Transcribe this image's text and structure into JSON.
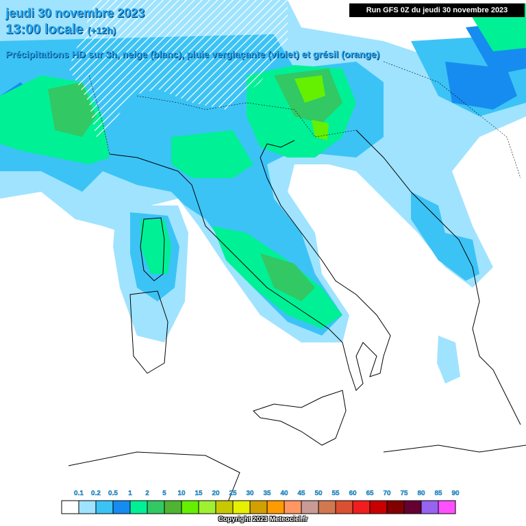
{
  "header": {
    "date": "jeudi 30 novembre 2023",
    "time": "13:00 locale",
    "offset": "(+12h)",
    "subtitle": "Précipitations HD sur 3h, neige (blanc), pluie verglaçante (violet) et grésil (orange)",
    "run": "Run GFS 0Z du jeudi 30 novembre 2023"
  },
  "legend": {
    "labels": [
      "0.1",
      "0.2",
      "0.5",
      "1",
      "2",
      "5",
      "10",
      "15",
      "20",
      "25",
      "30",
      "35",
      "40",
      "45",
      "50",
      "55",
      "60",
      "65",
      "70",
      "75",
      "80",
      "85",
      "90"
    ],
    "colors": [
      "#ffffff",
      "#9fe3ff",
      "#3cc3f5",
      "#168cf0",
      "#00f096",
      "#32c864",
      "#50b432",
      "#64f000",
      "#a0f032",
      "#c8c800",
      "#e6f000",
      "#d2a000",
      "#ff9b00",
      "#ff9664",
      "#c89b96",
      "#d27850",
      "#dc5032",
      "#f01e1e",
      "#c80000",
      "#820000",
      "#640032",
      "#9664f0",
      "#ff50ff"
    ]
  },
  "footer": {
    "copyright": "Copyright 2023 Meteociel.fr"
  }
}
